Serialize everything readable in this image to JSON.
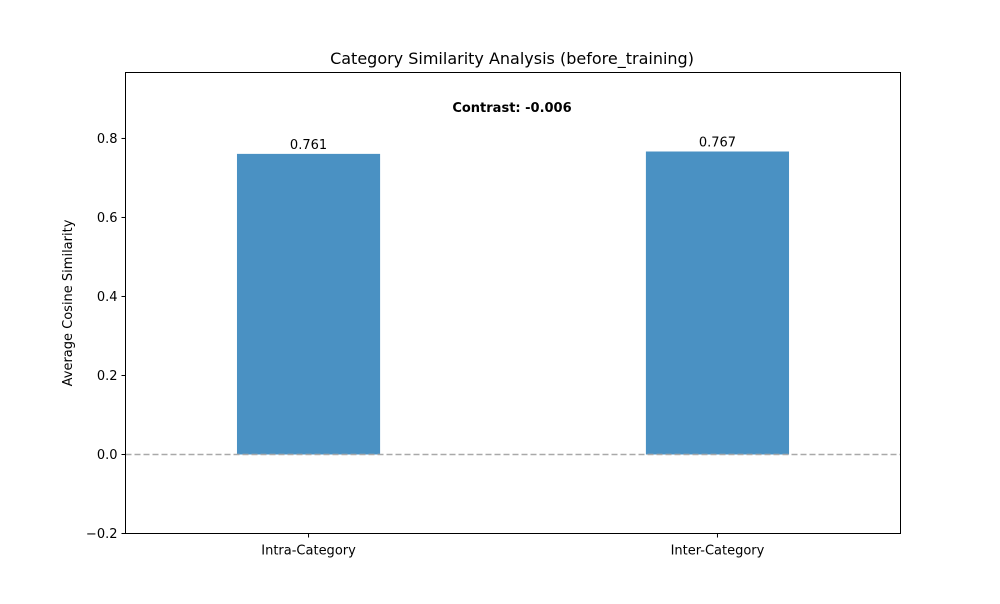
{
  "chart_data": {
    "type": "bar",
    "title": "Category Similarity Analysis (before_training)",
    "xlabel": "",
    "ylabel": "Average Cosine Similarity",
    "categories": [
      "Intra-Category",
      "Inter-Category"
    ],
    "values": [
      0.761,
      0.767
    ],
    "value_labels": [
      "0.761",
      "0.767"
    ],
    "ylim": [
      -0.2,
      0.967
    ],
    "yticks": [
      -0.2,
      0.0,
      0.2,
      0.4,
      0.6,
      0.8
    ],
    "ytick_labels": [
      "−0.2",
      "0.0",
      "0.2",
      "0.4",
      "0.6",
      "0.8"
    ],
    "reference_line": {
      "y": 0.0,
      "style": "dashed",
      "color": "#a9a9a9"
    },
    "annotation": "Contrast: -0.006",
    "bar_color": "#4a91c3",
    "grid": false,
    "legend": false
  }
}
